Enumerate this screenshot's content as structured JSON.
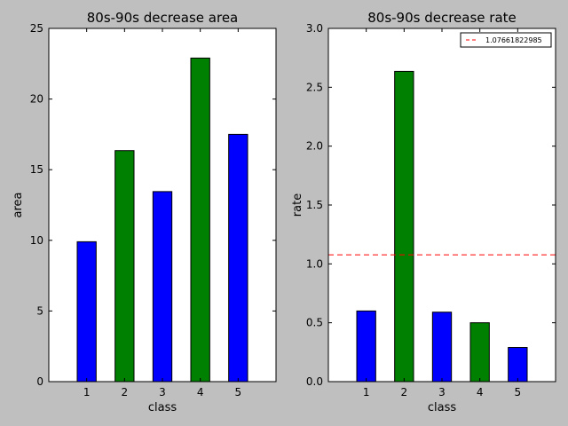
{
  "chart_data": [
    {
      "type": "bar",
      "title": "80s-90s decrease area",
      "xlabel": "class",
      "ylabel": "area",
      "categories": [
        "1",
        "2",
        "3",
        "4",
        "5"
      ],
      "values": [
        9.9,
        16.35,
        13.45,
        22.9,
        17.5
      ],
      "bar_colors": [
        "#0000ff",
        "#008000",
        "#0000ff",
        "#008000",
        "#0000ff"
      ],
      "xlim": [
        0,
        6
      ],
      "ylim": [
        0,
        25
      ],
      "yticks": [
        "0",
        "5",
        "10",
        "15",
        "20",
        "25"
      ],
      "grid": false
    },
    {
      "type": "bar",
      "title": "80s-90s decrease rate",
      "xlabel": "class",
      "ylabel": "rate",
      "categories": [
        "1",
        "2",
        "3",
        "4",
        "5"
      ],
      "values": [
        0.6,
        2.635,
        0.59,
        0.5,
        0.29
      ],
      "bar_colors": [
        "#0000ff",
        "#008000",
        "#0000ff",
        "#008000",
        "#0000ff"
      ],
      "xlim": [
        0,
        6
      ],
      "ylim": [
        0,
        3
      ],
      "yticks": [
        "0.0",
        "0.5",
        "1.0",
        "1.5",
        "2.0",
        "2.5",
        "3.0"
      ],
      "grid": false,
      "reference_line": {
        "value": 1.07661822985,
        "label": "1.07661822985",
        "color": "#ff0000",
        "style": "dashed"
      },
      "legend": {
        "position": "top-right",
        "entries": [
          "1.07661822985"
        ]
      }
    }
  ]
}
